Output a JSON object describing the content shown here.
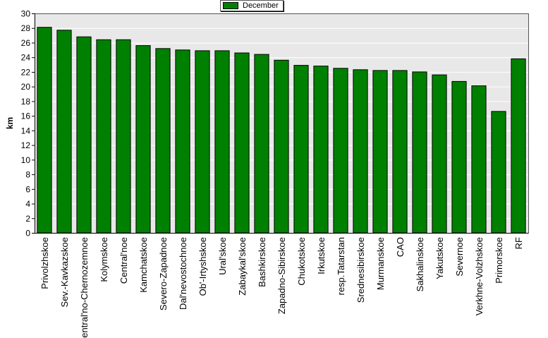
{
  "chart_data": {
    "type": "bar",
    "title": "",
    "xlabel": "",
    "ylabel": "km",
    "ylim": [
      0,
      30
    ],
    "yticks": [
      0,
      2,
      4,
      6,
      8,
      10,
      12,
      14,
      16,
      18,
      20,
      22,
      24,
      26,
      28,
      30
    ],
    "grid": true,
    "legend_position": "top-center",
    "categories": [
      "Privolzhskoe",
      "Sev.-Kavkazskoe",
      "Central'no-Chernozemnoe",
      "Kolymskoe",
      "Central'noe",
      "Kamchatskoe",
      "Severo-Zapadnoe",
      "Dal'nevostochnoe",
      "Ob'-Irtyshskoe",
      "Ural'skoe",
      "Zabaykal'skoe",
      "Bashkirskoe",
      "Zapadno-Sibirskoe",
      "Chukotskoe",
      "Irkutskoe",
      "resp.Tatarstan",
      "Srednesibirskoe",
      "Murmanskoe",
      "CAO",
      "Sakhalinskoe",
      "Yakutskoe",
      "Severnoe",
      "Verkhne-Volzhskoe",
      "Primorskoe",
      "RF"
    ],
    "series": [
      {
        "name": "December",
        "color": "#008000",
        "values": [
          28.1,
          27.7,
          26.8,
          26.4,
          26.4,
          25.6,
          25.2,
          25.0,
          24.9,
          24.9,
          24.6,
          24.4,
          23.6,
          22.9,
          22.8,
          22.5,
          22.3,
          22.2,
          22.2,
          22.0,
          21.6,
          20.7,
          20.1,
          16.6,
          23.8
        ]
      }
    ]
  },
  "colors": {
    "plot_background": "#e8e8e8",
    "bar": "#008000",
    "grid": "#ffffff",
    "axis": "#000000"
  }
}
